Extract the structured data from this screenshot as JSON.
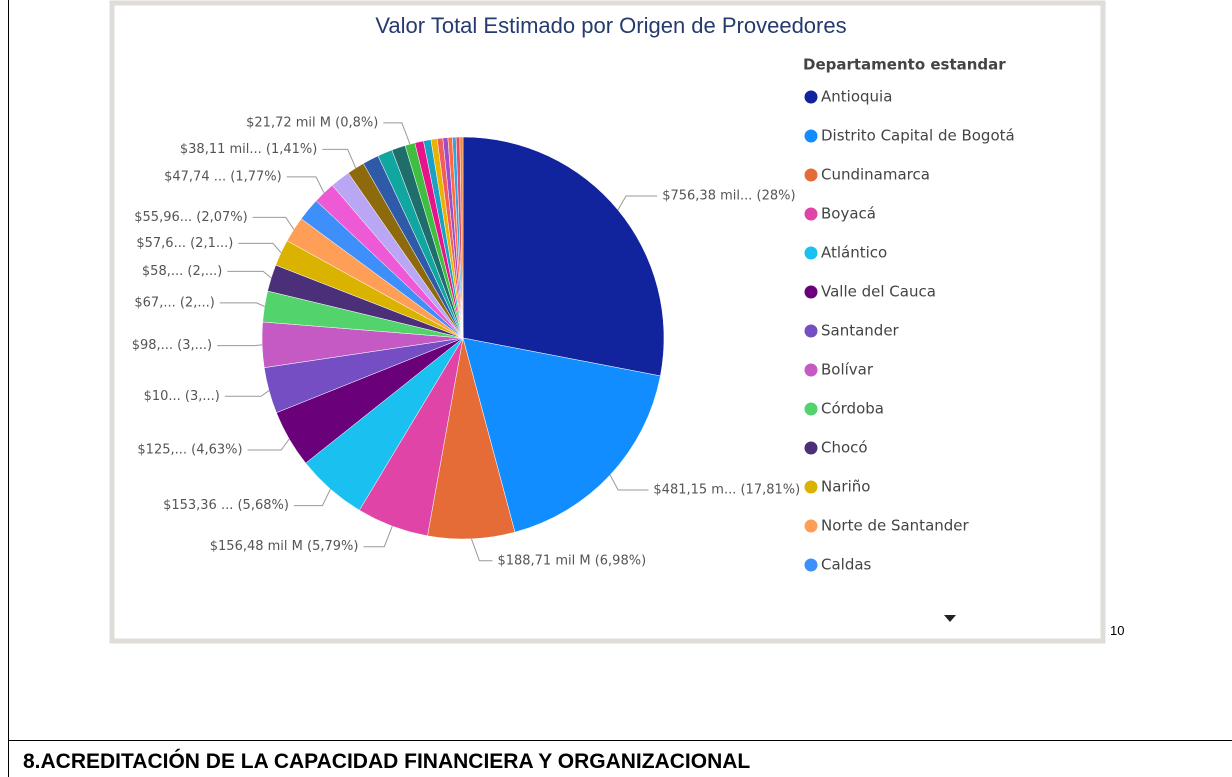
{
  "chart_data": {
    "type": "pie",
    "title": "Valor Total Estimado por Origen de Proveedores",
    "legend_title": "Departamento estandar",
    "categories": [
      "Antioquia",
      "Distrito Capital de Bogotá",
      "Cundinamarca",
      "Boyacá",
      "Atlántico",
      "Valle del Cauca",
      "Santander",
      "Bolívar",
      "Córdoba",
      "Chocó",
      "Nariño",
      "Norte de Santander",
      "Caldas",
      null,
      null,
      null,
      null,
      null,
      null,
      null,
      null,
      null,
      null,
      null,
      null,
      null,
      null,
      null,
      null
    ],
    "values": [
      28,
      17.81,
      6.98,
      5.79,
      5.68,
      4.63,
      3.7,
      3.63,
      2.48,
      2.15,
      2.13,
      2.07,
      1.85,
      1.77,
      1.6,
      1.41,
      1.3,
      1.2,
      1.1,
      0.8,
      0.7,
      0.6,
      0.5,
      0.45,
      0.4,
      0.35,
      0.3,
      0.3,
      0.25
    ],
    "value_labels": [
      "$756,38 mil... (28%)",
      "$481,15 m... (17,81%)",
      "$188,71 mil M (6,98%)",
      "$156,48 mil M (5,79%)",
      "$153,36 ... (5,68%)",
      "$125,... (4,63%)",
      "$10... (3,...)",
      "$98,... (3,...)",
      "$67,... (2,...)",
      "$58,... (2,...)",
      "$57,6... (2,1...)",
      "$55,96... (2,07%)",
      null,
      "$47,74 ... (1,77%)",
      null,
      "$38,11 mil... (1,41%)",
      null,
      null,
      null,
      "$21,72 mil M (0,8%)",
      null,
      null,
      null,
      null,
      null,
      null,
      null,
      null,
      null
    ],
    "colors": [
      "#12239e",
      "#118dff",
      "#e66c37",
      "#e044a7",
      "#1ac1f0",
      "#6b007b",
      "#744ec2",
      "#c55ac5",
      "#52d36b",
      "#4c2f79",
      "#d9b300",
      "#ff9e57",
      "#3f8ffa",
      "#ee5ad6",
      "#b9a6f5",
      "#8d6a0c",
      "#2e5aa8",
      "#12a6a0",
      "#1f6e6b",
      "#3fbf40",
      "#e6138a",
      "#1aa2c5",
      "#e8b400",
      "#f25c5c",
      "#9a4ec8",
      "#fe6a42",
      "#33a3d9",
      "#e34a6f",
      "#f0883a"
    ]
  },
  "page_number": "10",
  "section_heading": "8.ACREDITACIÓN DE LA CAPACIDAD FINANCIERA Y ORGANIZACIONAL"
}
